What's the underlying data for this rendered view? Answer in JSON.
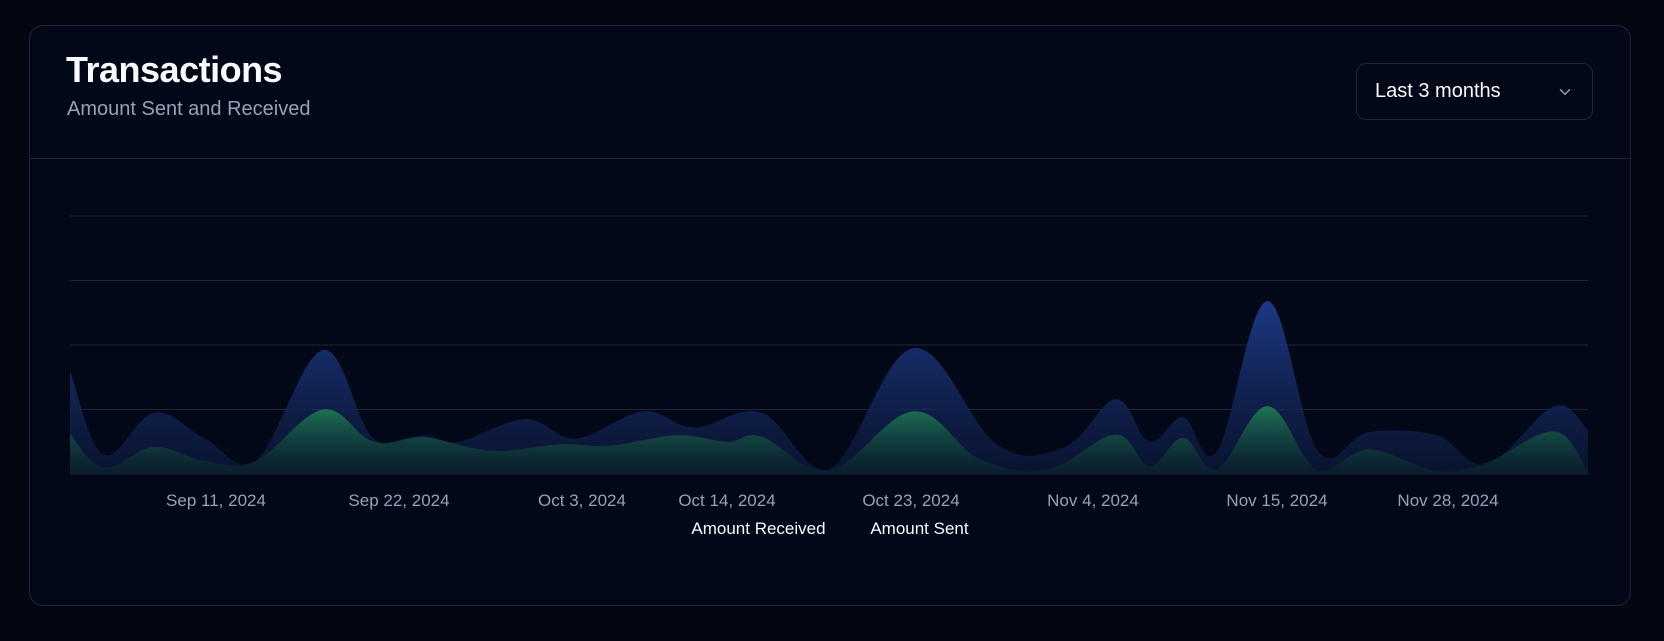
{
  "card": {
    "title": "Transactions",
    "subtitle": "Amount Sent and Received"
  },
  "range_select": {
    "value": "Last 3 months",
    "icon": "chevron-down-icon"
  },
  "legend": {
    "received_label": "Amount Received",
    "sent_label": "Amount Sent"
  },
  "colors": {
    "received": "#1e3a8a",
    "sent": "#15803d",
    "grid": "#1f2533",
    "tick": "#94a3b8"
  },
  "chart_data": {
    "type": "area",
    "x_start": "2024-09-01",
    "x_end": "2024-11-30",
    "x_ticks": [
      "Sep 11, 2024",
      "Sep 22, 2024",
      "Oct 3, 2024",
      "Oct 14, 2024",
      "Oct 23, 2024",
      "Nov 4, 2024",
      "Nov 15, 2024",
      "Nov 28, 2024"
    ],
    "ylim": [
      0,
      4
    ],
    "grid": true,
    "legend_position": "bottom",
    "series": [
      {
        "name": "Amount Received",
        "points": [
          [
            "2024-09-01",
            1.6
          ],
          [
            "2024-09-03",
            0.3
          ],
          [
            "2024-09-06",
            0.95
          ],
          [
            "2024-09-09",
            0.55
          ],
          [
            "2024-09-12",
            0.2
          ],
          [
            "2024-09-16",
            1.92
          ],
          [
            "2024-09-19",
            0.55
          ],
          [
            "2024-09-22",
            0.6
          ],
          [
            "2024-09-24",
            0.5
          ],
          [
            "2024-09-28",
            0.85
          ],
          [
            "2024-10-01",
            0.55
          ],
          [
            "2024-10-05",
            0.97
          ],
          [
            "2024-10-08",
            0.72
          ],
          [
            "2024-10-12",
            0.95
          ],
          [
            "2024-10-16",
            0.07
          ],
          [
            "2024-10-21",
            1.95
          ],
          [
            "2024-10-26",
            0.45
          ],
          [
            "2024-10-30",
            0.42
          ],
          [
            "2024-11-02",
            1.16
          ],
          [
            "2024-11-04",
            0.5
          ],
          [
            "2024-11-06",
            0.88
          ],
          [
            "2024-11-08",
            0.35
          ],
          [
            "2024-11-11",
            2.68
          ],
          [
            "2024-11-14",
            0.35
          ],
          [
            "2024-11-17",
            0.65
          ],
          [
            "2024-11-21",
            0.6
          ],
          [
            "2024-11-24",
            0.15
          ],
          [
            "2024-11-28",
            1.05
          ],
          [
            "2024-11-30",
            0.68
          ]
        ]
      },
      {
        "name": "Amount Sent",
        "points": [
          [
            "2024-09-01",
            0.62
          ],
          [
            "2024-09-03",
            0.1
          ],
          [
            "2024-09-06",
            0.42
          ],
          [
            "2024-09-09",
            0.2
          ],
          [
            "2024-09-12",
            0.2
          ],
          [
            "2024-09-16",
            1.0
          ],
          [
            "2024-09-19",
            0.5
          ],
          [
            "2024-09-22",
            0.57
          ],
          [
            "2024-09-26",
            0.36
          ],
          [
            "2024-09-30",
            0.46
          ],
          [
            "2024-10-03",
            0.44
          ],
          [
            "2024-10-07",
            0.6
          ],
          [
            "2024-10-10",
            0.5
          ],
          [
            "2024-10-12",
            0.58
          ],
          [
            "2024-10-16",
            0.05
          ],
          [
            "2024-10-21",
            0.97
          ],
          [
            "2024-10-25",
            0.22
          ],
          [
            "2024-10-29",
            0.08
          ],
          [
            "2024-11-02",
            0.61
          ],
          [
            "2024-11-04",
            0.12
          ],
          [
            "2024-11-06",
            0.56
          ],
          [
            "2024-11-08",
            0.07
          ],
          [
            "2024-11-11",
            1.05
          ],
          [
            "2024-11-14",
            0.05
          ],
          [
            "2024-11-17",
            0.38
          ],
          [
            "2024-11-21",
            0.05
          ],
          [
            "2024-11-24",
            0.18
          ],
          [
            "2024-11-28",
            0.66
          ],
          [
            "2024-11-30",
            0.03
          ]
        ]
      }
    ]
  }
}
